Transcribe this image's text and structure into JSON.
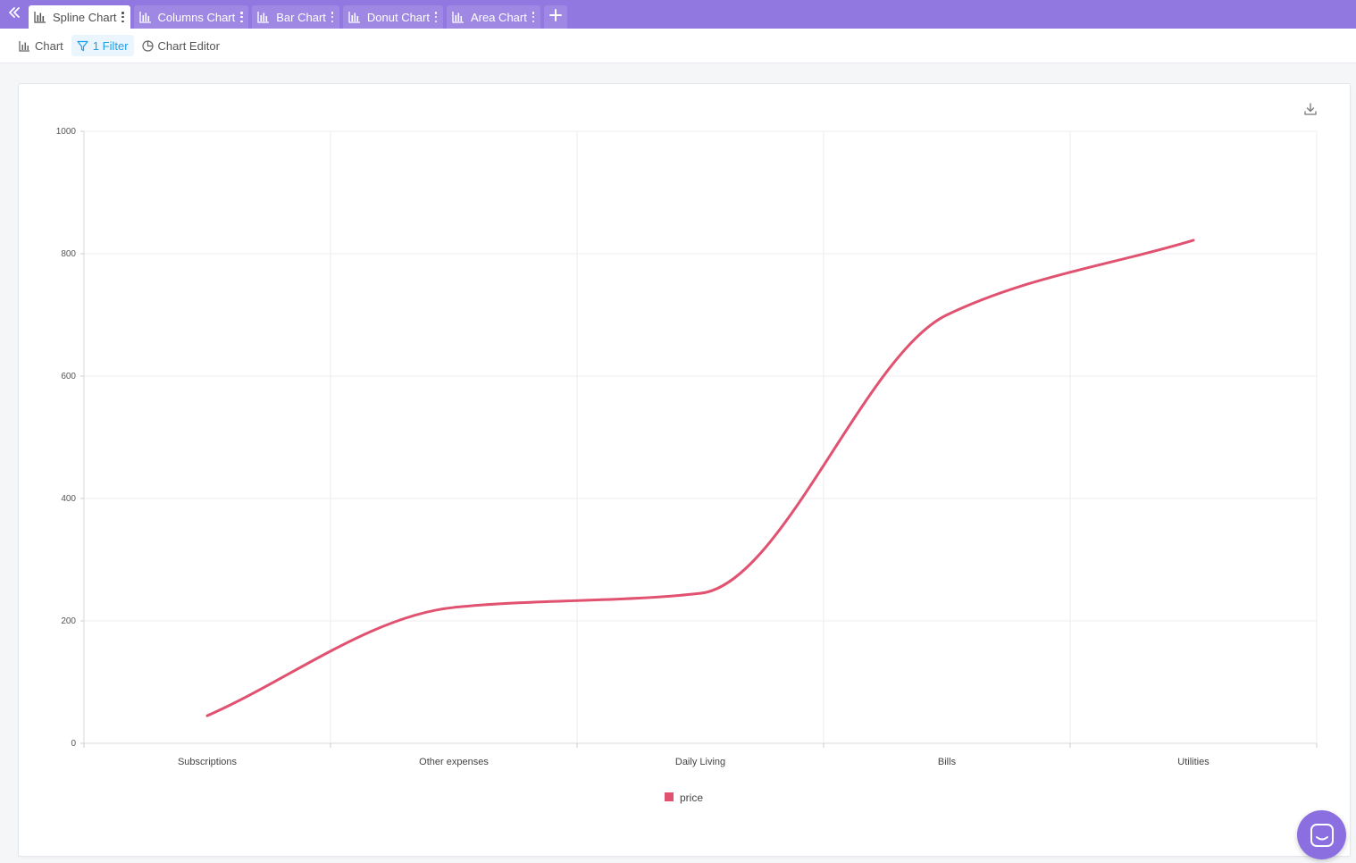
{
  "tabs": [
    {
      "label": "Spline Chart",
      "active": true
    },
    {
      "label": "Columns Chart",
      "active": false
    },
    {
      "label": "Bar Chart",
      "active": false
    },
    {
      "label": "Donut Chart",
      "active": false
    },
    {
      "label": "Area Chart",
      "active": false
    }
  ],
  "toolbar": {
    "chart_label": "Chart",
    "filter_label": "1 Filter",
    "editor_label": "Chart Editor"
  },
  "colors": {
    "tabbar": "#9178e0",
    "series": "#e0526f",
    "filter_accent": "#1ea1e9"
  },
  "icons": {
    "collapse": "double-chevron-left-icon",
    "tab": "bar-chart-icon",
    "add": "plus-icon",
    "filter": "filter-icon",
    "editor": "pie-chart-icon",
    "download": "download-icon",
    "messenger": "chat-icon"
  },
  "chart_data": {
    "type": "line",
    "smooth": true,
    "categories": [
      "Subscriptions",
      "Other expenses",
      "Daily Living",
      "Bills",
      "Utilities"
    ],
    "series": [
      {
        "name": "price",
        "color": "#e0526f",
        "values": [
          45,
          222,
          245,
          700,
          822
        ]
      }
    ],
    "ylim": [
      0,
      1000
    ],
    "yticks": [
      0,
      200,
      400,
      600,
      800,
      1000
    ],
    "grid": true,
    "legend": "bottom"
  }
}
